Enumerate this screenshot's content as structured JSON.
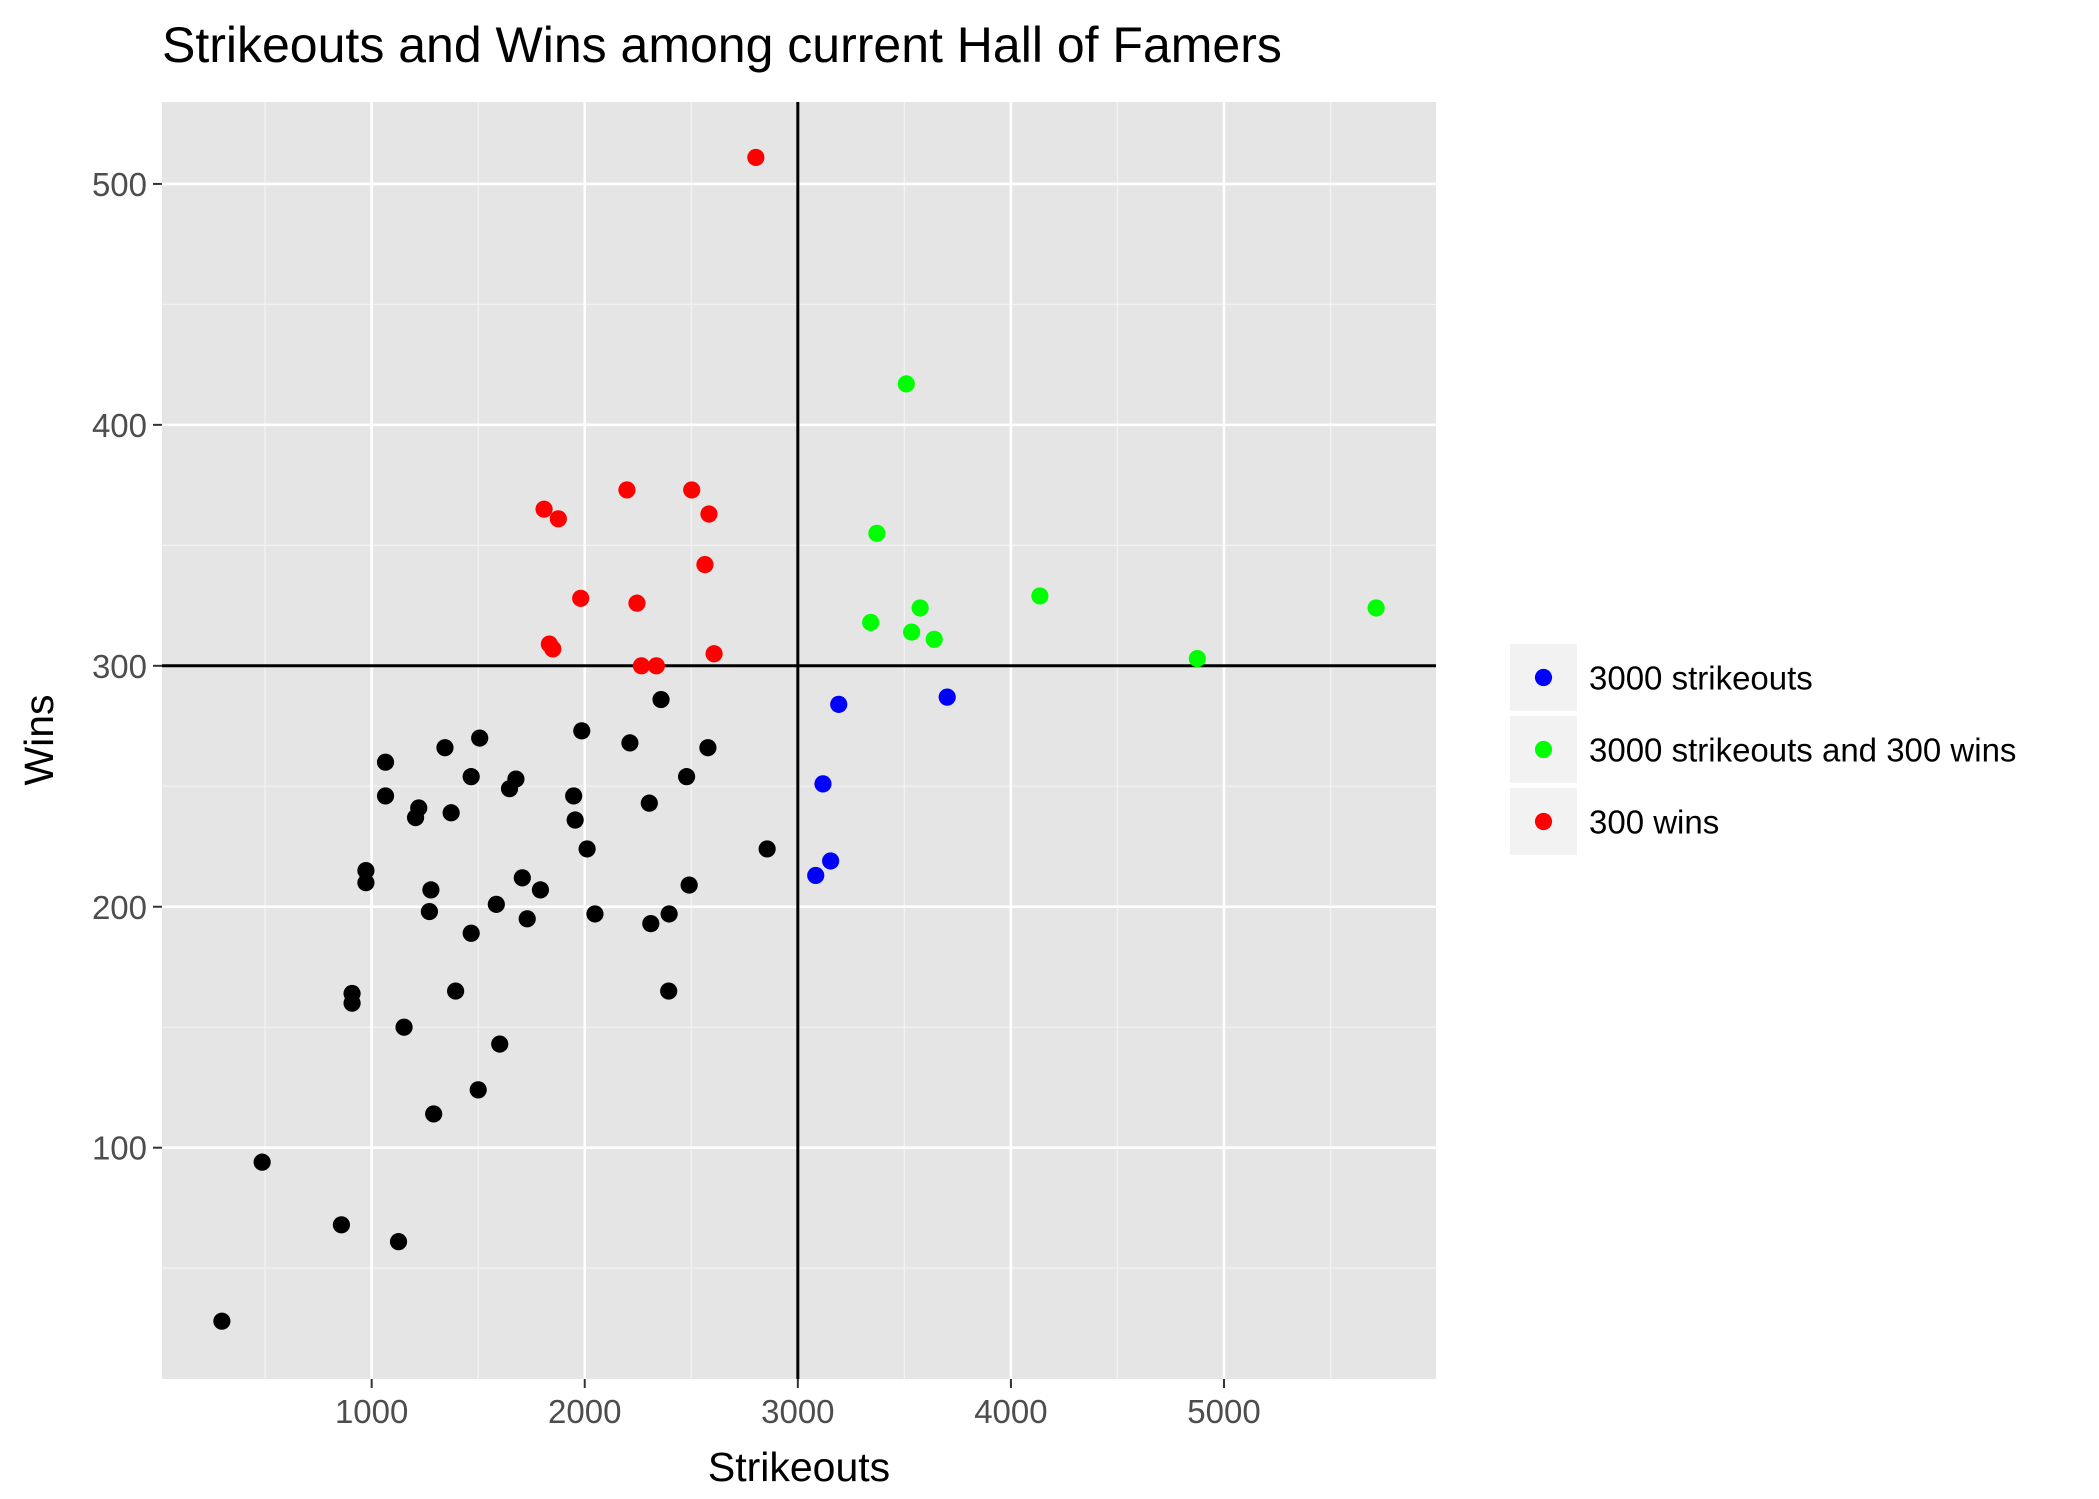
{
  "chart_data": {
    "type": "scatter",
    "title": "Strikeouts and Wins among current Hall of Famers",
    "xlabel": "Strikeouts",
    "ylabel": "Wins",
    "xlim": [
      16,
      5995
    ],
    "ylim": [
      4,
      534
    ],
    "xticks": [
      1000,
      2000,
      3000,
      4000,
      5000
    ],
    "yticks": [
      100,
      200,
      300,
      400,
      500
    ],
    "x_minor_ticks": [
      500,
      1500,
      2500,
      3500,
      4500,
      5500
    ],
    "y_minor_ticks": [
      50,
      150,
      250,
      350,
      450
    ],
    "reference_lines": [
      {
        "orientation": "vertical",
        "value": 3000
      },
      {
        "orientation": "horizontal",
        "value": 300
      }
    ],
    "grid": true,
    "legend_position": "right",
    "series": [
      {
        "name": "",
        "color": "#000000",
        "show_in_legend": false,
        "points": [
          [
            297,
            28
          ],
          [
            486,
            94
          ],
          [
            858,
            68
          ],
          [
            1126,
            61
          ],
          [
            908,
            164
          ],
          [
            908,
            160
          ],
          [
            1152,
            150
          ],
          [
            1291,
            114
          ],
          [
            1601,
            143
          ],
          [
            1500,
            124
          ],
          [
            1394,
            165
          ],
          [
            973,
            215
          ],
          [
            973,
            210
          ],
          [
            1065,
            260
          ],
          [
            1065,
            246
          ],
          [
            1206,
            237
          ],
          [
            1221,
            241
          ],
          [
            1278,
            207
          ],
          [
            1271,
            198
          ],
          [
            1344,
            266
          ],
          [
            1373,
            239
          ],
          [
            1467,
            189
          ],
          [
            1467,
            254
          ],
          [
            1507,
            270
          ],
          [
            1585,
            201
          ],
          [
            1647,
            249
          ],
          [
            1677,
            253
          ],
          [
            1707,
            212
          ],
          [
            1730,
            195
          ],
          [
            1792,
            207
          ],
          [
            1948,
            246
          ],
          [
            1955,
            236
          ],
          [
            1986,
            273
          ],
          [
            2011,
            224
          ],
          [
            2048,
            197
          ],
          [
            2212,
            268
          ],
          [
            2303,
            243
          ],
          [
            2310,
            193
          ],
          [
            2358,
            286
          ],
          [
            2394,
            165
          ],
          [
            2396,
            197
          ],
          [
            2478,
            254
          ],
          [
            2490,
            209
          ],
          [
            2578,
            266
          ],
          [
            2856,
            224
          ]
        ]
      },
      {
        "name": "3000 strikeouts",
        "color": "#0000ff",
        "show_in_legend": true,
        "points": [
          [
            3084,
            213
          ],
          [
            3118,
            251
          ],
          [
            3154,
            219
          ],
          [
            3192,
            284
          ],
          [
            3701,
            287
          ]
        ]
      },
      {
        "name": "3000 strikeouts and 300 wins",
        "color": "#00ff00",
        "show_in_legend": true,
        "points": [
          [
            3509,
            417
          ],
          [
            3371,
            355
          ],
          [
            3342,
            318
          ],
          [
            3534,
            314
          ],
          [
            3574,
            324
          ],
          [
            3640,
            311
          ],
          [
            4136,
            329
          ],
          [
            4875,
            303
          ],
          [
            5714,
            324
          ]
        ]
      },
      {
        "name": "300 wins",
        "color": "#ff0000",
        "show_in_legend": true,
        "points": [
          [
            2803,
            511
          ],
          [
            1809,
            365
          ],
          [
            1876,
            361
          ],
          [
            2198,
            373
          ],
          [
            2502,
            373
          ],
          [
            2583,
            363
          ],
          [
            2564,
            342
          ],
          [
            1981,
            328
          ],
          [
            2245,
            326
          ],
          [
            1834,
            309
          ],
          [
            1850,
            307
          ],
          [
            2266,
            300
          ],
          [
            2336,
            300
          ],
          [
            2607,
            305
          ]
        ]
      }
    ]
  },
  "colors": {
    "panel_background": "#e5e5e5",
    "grid_major": "#ffffff",
    "grid_minor": "#f2f2f2",
    "reference_line": "#000000",
    "legend_key_background": "#f2f2f2",
    "tick_label": "#4d4d4d"
  }
}
